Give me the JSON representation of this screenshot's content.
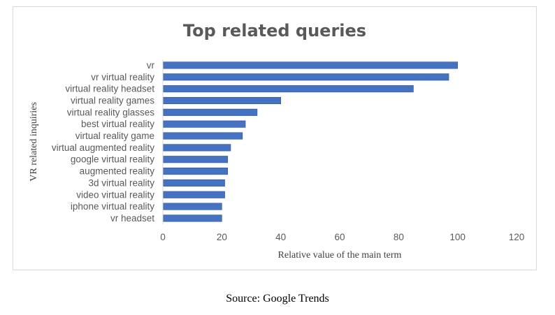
{
  "chart_data": {
    "type": "bar",
    "orientation": "horizontal",
    "title": "Top related queries",
    "xlabel": "Relative value of the main term",
    "ylabel": "VR related inquiries",
    "xlim": [
      0,
      120
    ],
    "xticks": [
      0,
      20,
      40,
      60,
      80,
      100,
      120
    ],
    "grid": false,
    "legend": "none",
    "categories": [
      "vr",
      "vr virtual reality",
      "virtual reality headset",
      "virtual reality games",
      "virtual reality glasses",
      "best virtual reality",
      "virtual reality game",
      "virtual augmented reality",
      "google virtual reality",
      "augmented reality",
      "3d virtual reality",
      "video virtual reality",
      "iphone virtual reality",
      "vr headset"
    ],
    "values": [
      100,
      97,
      85,
      40,
      32,
      28,
      27,
      23,
      22,
      22,
      21,
      21,
      20,
      20
    ],
    "bar_color": "#4472C4",
    "bar_edge_color": "#2F5597",
    "axis_color": "#d9d9d9"
  },
  "caption": {
    "text": "Source: Google Trends"
  }
}
